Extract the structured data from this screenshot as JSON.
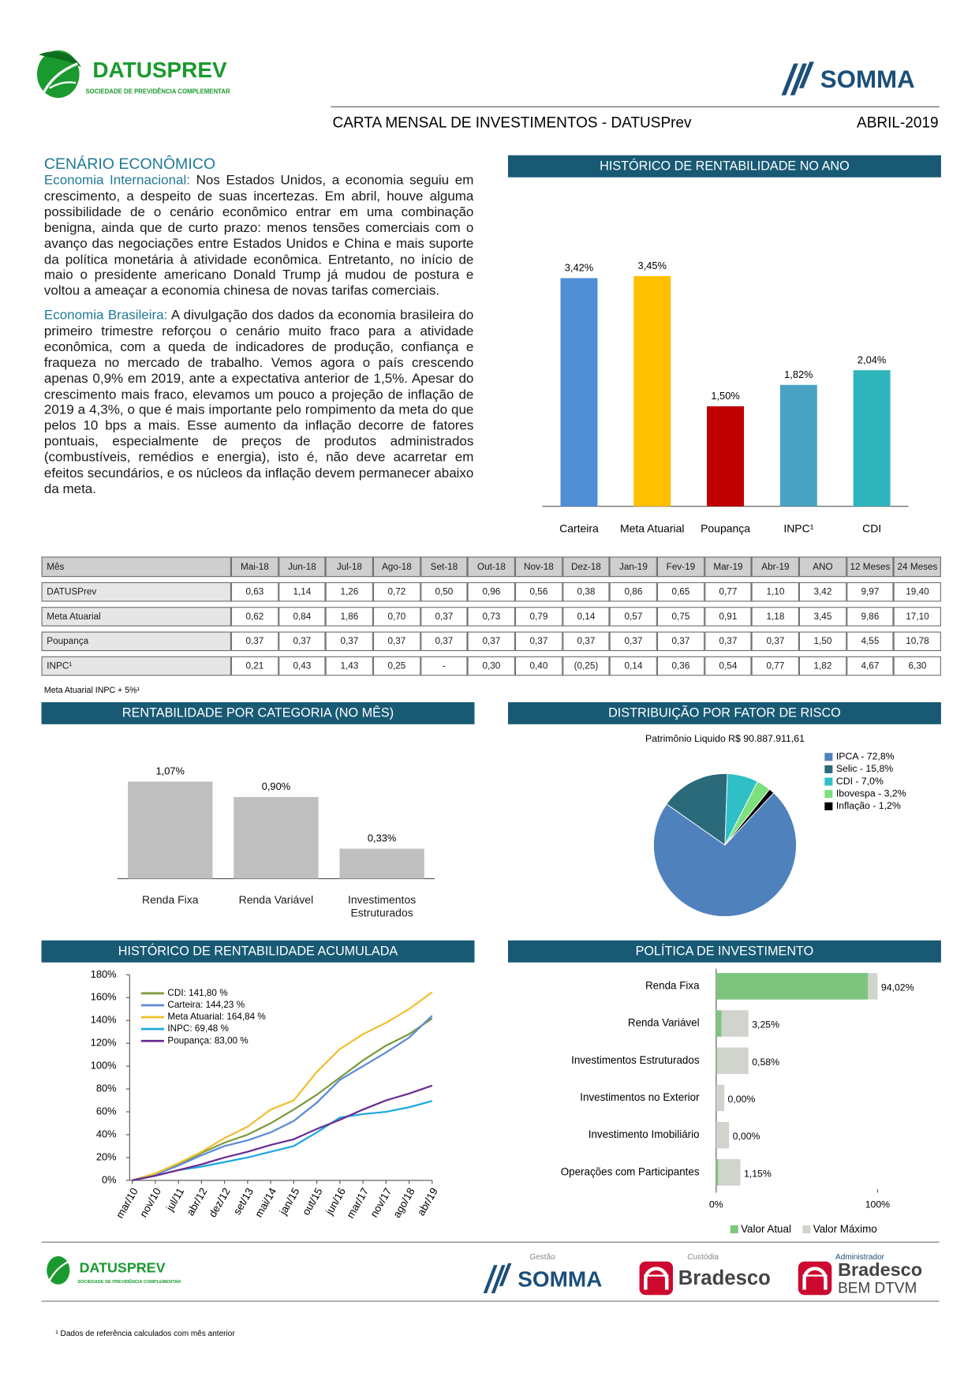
{
  "header": {
    "logo_name": "DATUSPREV",
    "logo_tagline": "SOCIEDADE DE PREVIDÊNCIA COMPLEMENTAR",
    "partner_logo": "SOMMA",
    "title": "CARTA MENSAL DE INVESTIMENTOS - DATUSPrev",
    "date": "ABRIL-2019"
  },
  "scenario": {
    "title": "CENÁRIO ECONÔMICO",
    "paragraphs": [
      {
        "label": "Economia Internacional:",
        "text": "Nos Estados Unidos, a economia seguiu em crescimento, a despeito de suas incertezas.  Em abril, houve alguma possibilidade de o cenário econômico entrar em uma combinação benigna, ainda que de curto prazo:  menos tensões comerciais com o avanço das negociações entre Estados Unidos e China e mais suporte da política monetária à atividade econômica.  Entretanto, no início de maio o presidente americano Donald Trump já mudou de postura e voltou a ameaçar a economia chinesa de novas tarifas comerciais."
      },
      {
        "label": "Economia Brasileira:",
        "text": "A divulgação dos dados da economia brasileira do primeiro trimestre reforçou o cenário muito fraco para a atividade econômica, com a queda de indicadores de produção, confiança e fraqueza no mercado de trabalho. Vemos agora o país crescendo apenas 0,9% em 2019, ante a expectativa anterior de 1,5%.  Apesar do crescimento mais fraco, elevamos um pouco a projeção de inflação de 2019 a 4,3%, o que é mais importante pelo rompimento da meta do que pelos 10 bps a mais.  Esse aumento da inflação decorre de fatores pontuais, especialmente de preços de produtos administrados (combustíveis, remédios e energia), isto é, não deve acarretar em efeitos secundários, e os núcleos da inflação devem permanecer abaixo da meta."
      }
    ]
  },
  "table": {
    "header": [
      "Mês",
      "Mai-18",
      "Jun-18",
      "Jul-18",
      "Ago-18",
      "Set-18",
      "Out-18",
      "Nov-18",
      "Dez-18",
      "Jan-19",
      "Fev-19",
      "Mar-19",
      "Abr-19",
      "ANO",
      "12 Meses",
      "24 Meses"
    ],
    "rows": [
      {
        "label": "DATUSPrev",
        "cells": [
          "0,63",
          "1,14",
          "1,26",
          "0,72",
          "0,50",
          "0,96",
          "0,56",
          "0,38",
          "0,86",
          "0,65",
          "0,77",
          "1,10",
          "3,42",
          "9,97",
          "19,40"
        ]
      },
      {
        "label": "Meta Atuarial",
        "cells": [
          "0,62",
          "0,84",
          "1,86",
          "0,70",
          "0,37",
          "0,73",
          "0,79",
          "0,14",
          "0,57",
          "0,75",
          "0,91",
          "1,18",
          "3,45",
          "9,86",
          "17,10"
        ]
      },
      {
        "label": "Poupança",
        "cells": [
          "0,37",
          "0,37",
          "0,37",
          "0,37",
          "0,37",
          "0,37",
          "0,37",
          "0,37",
          "0,37",
          "0,37",
          "0,37",
          "0,37",
          "1,50",
          "4,55",
          "10,78"
        ]
      },
      {
        "label": "INPC¹",
        "cells": [
          "0,21",
          "0,43",
          "1,43",
          "0,25",
          "-",
          "0,30",
          "0,40",
          "(0,25)",
          "0,14",
          "0,36",
          "0,54",
          "0,77",
          "1,82",
          "4,67",
          "6,30"
        ]
      }
    ],
    "note": "Meta Atuarial INPC + 5%¹"
  },
  "footer": {
    "logo_name": "DATUSPREV",
    "logo_tagline": "SOCIEDADE DE PREVIDÊNCIA COMPLEMENTAR",
    "manager_label": "Gestão",
    "manager": "SOMMA",
    "custody_label": "Custódia",
    "custody": "Bradesco",
    "admin_label": "Administrador",
    "admin": "Bradesco",
    "admin_sub": "BEM DTVM"
  },
  "footnote": "¹ Dados de referência calculados com mês anterior",
  "chart_data": [
    {
      "type": "bar",
      "title": "HISTÓRICO DE RENTABILIDADE NO ANO",
      "categories": [
        "Carteira",
        "Meta Atuarial",
        "Poupança",
        "INPC¹",
        "CDI"
      ],
      "values": [
        3.42,
        3.45,
        1.5,
        1.82,
        2.04
      ],
      "value_labels": [
        "3,42%",
        "3,45%",
        "1,50%",
        "1,82%",
        "2,04%"
      ],
      "colors": [
        "#4f8fd6",
        "#ffc000",
        "#c00000",
        "#4aa3c4",
        "#2fb5bc"
      ]
    },
    {
      "type": "bar",
      "title": "RENTABILIDADE POR CATEGORIA (NO MÊS)",
      "categories": [
        "Renda Fixa",
        "Renda Variável",
        "Investimentos Estruturados"
      ],
      "values": [
        1.07,
        0.9,
        0.33
      ],
      "value_labels": [
        "1,07%",
        "0,90%",
        "0,33%"
      ],
      "color": "#bfbfbf"
    },
    {
      "type": "pie",
      "title": "DISTRIBUIÇÃO POR FATOR DE RISCO",
      "subtitle": "Patrimônio Liquido R$ 90.887.911,61",
      "labels": [
        "IPCA - 72,8%",
        "Selic - 15,8%",
        "CDI - 7,0%",
        "Ibovespa - 3,2%",
        "Inflação - 1,2%"
      ],
      "values": [
        72.8,
        15.8,
        7.0,
        3.2,
        1.2
      ],
      "colors": [
        "#4f81bd",
        "#2a6a7a",
        "#2fbfc6",
        "#7de07d",
        "#000000"
      ],
      "legend": "right"
    },
    {
      "type": "line",
      "title": "HISTÓRICO DE RENTABILIDADE ACUMULADA",
      "categories": [
        "mar/10",
        "nov/10",
        "jul/11",
        "abr/12",
        "dez/12",
        "set/13",
        "mai/14",
        "jan/15",
        "out/15",
        "jun/16",
        "mar/17",
        "nov/17",
        "ago/18",
        "abr/19"
      ],
      "series": [
        {
          "name": "CDI: 141,80 %",
          "color": "#7a9a3a",
          "values": [
            0,
            6,
            14,
            24,
            33,
            40,
            50,
            62,
            75,
            90,
            105,
            118,
            128,
            141.8
          ]
        },
        {
          "name": "Carteira: 144,23 %",
          "color": "#5b8bd6",
          "values": [
            0,
            5,
            13,
            22,
            30,
            35,
            42,
            52,
            68,
            88,
            100,
            112,
            125,
            144.23
          ]
        },
        {
          "name": "Meta Atuarial: 164,84 %",
          "color": "#f0c030",
          "values": [
            0,
            6,
            15,
            25,
            37,
            47,
            62,
            70,
            95,
            115,
            128,
            138,
            150,
            164.84
          ]
        },
        {
          "name": "INPC: 69,48 %",
          "color": "#1aa7e0",
          "values": [
            0,
            4,
            9,
            12,
            16,
            20,
            25,
            30,
            42,
            55,
            58,
            60,
            64,
            69.48
          ]
        },
        {
          "name": "Poupança: 83,00 %",
          "color": "#6a2c91",
          "values": [
            0,
            4,
            9,
            14,
            20,
            25,
            31,
            36,
            45,
            53,
            62,
            70,
            76,
            83
          ]
        }
      ],
      "ylim": [
        0,
        180
      ],
      "yticks": [
        {
          "value": 0,
          "label": "0%"
        },
        {
          "value": 20,
          "label": "20%"
        },
        {
          "value": 40,
          "label": "40%"
        },
        {
          "value": 60,
          "label": "60%"
        },
        {
          "value": 80,
          "label": "80%"
        },
        {
          "value": 100,
          "label": "100%"
        },
        {
          "value": 120,
          "label": "120%"
        },
        {
          "value": 140,
          "label": "140%"
        },
        {
          "value": 160,
          "label": "160%"
        },
        {
          "value": 180,
          "label": "180%"
        }
      ],
      "legend": "top-left"
    },
    {
      "type": "hbar",
      "title": "POLÍTICA DE INVESTIMENTO",
      "categories": [
        "Renda Fixa",
        "Renda Variável",
        "Investimentos Estruturados",
        "Investimentos no Exterior",
        "Investimento Imobiliário",
        "Operações com Participantes"
      ],
      "series": [
        {
          "name": "Valor Atual",
          "color": "#7dc57e",
          "values": [
            94.02,
            3.25,
            0.58,
            0,
            0,
            1.15
          ],
          "value_labels": [
            "94,02%",
            "3,25%",
            "0,58%",
            "0,00%",
            "0,00%",
            "1,15%"
          ]
        },
        {
          "name": "Valor Máximo",
          "color": "#d0d4cc",
          "values": [
            100,
            20,
            20,
            5,
            8,
            15
          ]
        }
      ],
      "xlim": [
        0,
        100
      ],
      "xticks": [
        {
          "value": 0,
          "label": "0%"
        },
        {
          "value": 100,
          "label": "100%"
        }
      ],
      "legend": "bottom"
    }
  ]
}
